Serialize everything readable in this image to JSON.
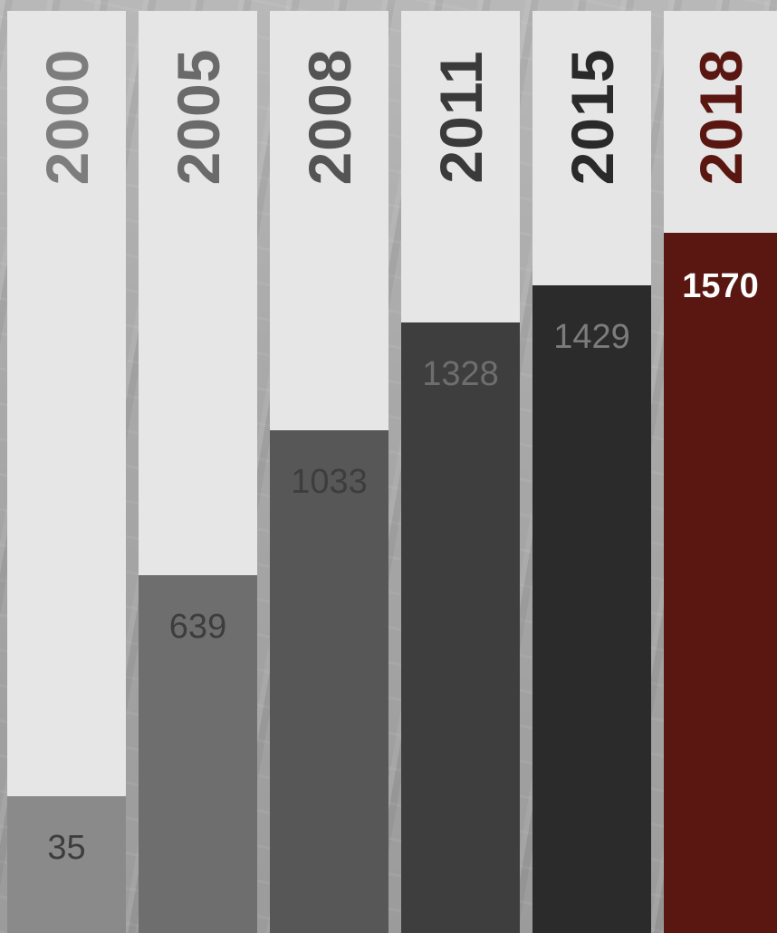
{
  "chart_data": {
    "type": "bar",
    "categories": [
      "2000",
      "2005",
      "2008",
      "2011",
      "2015",
      "2018"
    ],
    "values": [
      35,
      639,
      1033,
      1328,
      1429,
      1570
    ],
    "bar_colors": [
      "#8a8a8a",
      "#6e6e6e",
      "#575757",
      "#3e3e3e",
      "#2b2b2b",
      "#5a1712"
    ],
    "year_label_colors": [
      "#7d7d7d",
      "#6a6a6a",
      "#545454",
      "#3a3a3a",
      "#2a2a2a",
      "#5a1712"
    ],
    "value_label_colors": [
      "#3d3d3d",
      "#3d3d3d",
      "#3d3d3d",
      "#6e6e6e",
      "#7c7c7c",
      "#ffffff"
    ],
    "highlight_category": "2018",
    "track_color": "#e6e6e6",
    "title": "",
    "xlabel": "",
    "ylabel": ""
  }
}
